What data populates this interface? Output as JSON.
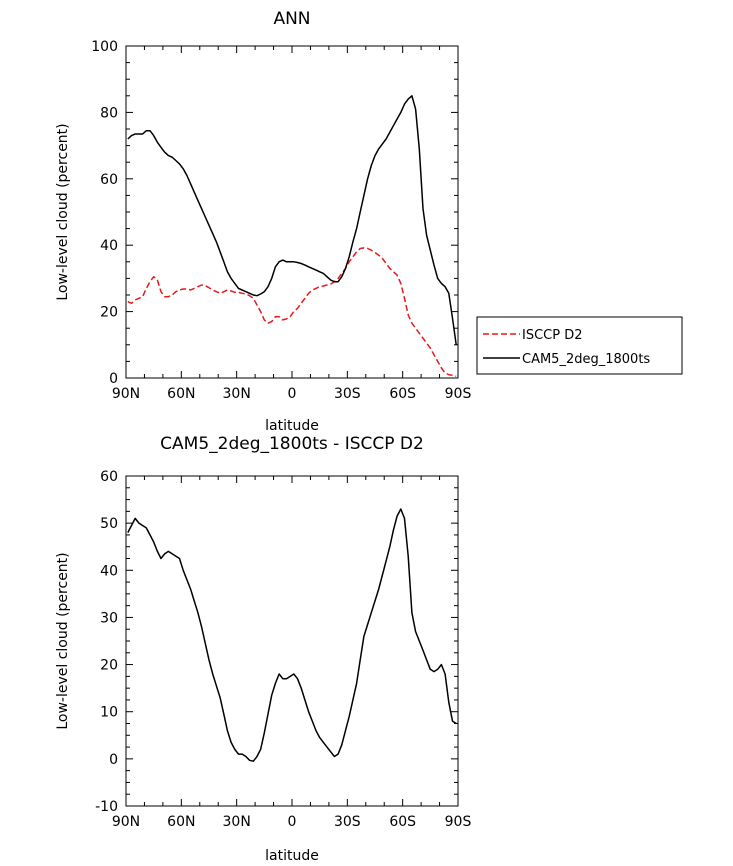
{
  "chart_data": [
    {
      "type": "line",
      "title": "ANN",
      "xlabel": "latitude",
      "ylabel": "Low-level cloud (percent)",
      "xlim": [
        90,
        -90
      ],
      "ylim": [
        0,
        100
      ],
      "xticks": [
        90,
        60,
        30,
        0,
        -30,
        -60,
        -90
      ],
      "xtick_labels": [
        "90N",
        "60N",
        "30N",
        "0",
        "30S",
        "60S",
        "90S"
      ],
      "yticks": [
        0,
        20,
        40,
        60,
        80,
        100
      ],
      "ytick_labels": [
        "0",
        "20",
        "40",
        "60",
        "80",
        "100"
      ],
      "legend_position": "right",
      "series": [
        {
          "name": "ISCCP D2",
          "color": "#e41a1c",
          "dash": "dashed",
          "x": [
            89,
            87,
            85,
            83,
            81,
            79,
            77,
            75,
            73,
            71,
            69,
            67,
            65,
            63,
            61,
            59,
            57,
            55,
            53,
            51,
            49,
            47,
            45,
            43,
            41,
            39,
            37,
            35,
            33,
            31,
            29,
            27,
            25,
            23,
            21,
            19,
            17,
            15,
            13,
            11,
            9,
            7,
            5,
            3,
            1,
            -1,
            -3,
            -5,
            -7,
            -9,
            -11,
            -13,
            -15,
            -17,
            -19,
            -21,
            -23,
            -25,
            -27,
            -29,
            -31,
            -33,
            -35,
            -37,
            -39,
            -41,
            -43,
            -45,
            -47,
            -49,
            -51,
            -53,
            -55,
            -57,
            -59,
            -61,
            -63,
            -65,
            -67,
            -69,
            -71,
            -73,
            -75,
            -77,
            -79,
            -81,
            -83,
            -85,
            -87,
            -89
          ],
          "values": [
            23.0,
            22.5,
            23.5,
            24.0,
            24.5,
            27.0,
            29.0,
            30.5,
            29.5,
            26.0,
            24.5,
            24.5,
            25.0,
            26.0,
            26.5,
            26.8,
            26.8,
            26.5,
            27.0,
            27.5,
            28.0,
            27.8,
            27.2,
            26.5,
            26.0,
            25.5,
            26.0,
            26.5,
            26.2,
            25.8,
            25.8,
            25.5,
            25.3,
            24.8,
            24.0,
            22.0,
            20.0,
            17.5,
            16.5,
            17.0,
            18.5,
            18.5,
            17.5,
            17.8,
            18.5,
            20.0,
            21.0,
            22.5,
            24.0,
            25.5,
            26.5,
            27.0,
            27.5,
            27.7,
            28.0,
            28.3,
            29.0,
            30.0,
            31.5,
            33.0,
            35.0,
            36.5,
            38.0,
            39.0,
            39.2,
            39.0,
            38.5,
            37.8,
            37.0,
            36.0,
            34.5,
            33.0,
            32.0,
            31.0,
            28.5,
            24.0,
            19.0,
            16.5,
            15.0,
            13.5,
            12.0,
            10.5,
            9.0,
            7.0,
            5.0,
            3.0,
            1.5,
            1.0,
            0.8,
            0.5
          ]
        },
        {
          "name": "CAM5_2deg_1800ts",
          "color": "#000000",
          "dash": "solid",
          "x": [
            89,
            87,
            85,
            83,
            81,
            79,
            77,
            75,
            73,
            71,
            69,
            67,
            65,
            63,
            61,
            59,
            57,
            55,
            53,
            51,
            49,
            47,
            45,
            43,
            41,
            39,
            37,
            35,
            33,
            31,
            29,
            27,
            25,
            23,
            21,
            19,
            17,
            15,
            13,
            11,
            9,
            7,
            5,
            3,
            1,
            -1,
            -3,
            -5,
            -7,
            -9,
            -11,
            -13,
            -15,
            -17,
            -19,
            -21,
            -23,
            -25,
            -27,
            -29,
            -31,
            -33,
            -35,
            -37,
            -39,
            -41,
            -43,
            -45,
            -47,
            -49,
            -51,
            -53,
            -55,
            -57,
            -59,
            -61,
            -63,
            -65,
            -67,
            -69,
            -71,
            -73,
            -75,
            -77,
            -79,
            -81,
            -83,
            -85,
            -87,
            -89
          ],
          "values": [
            72.0,
            73.0,
            73.5,
            73.5,
            73.5,
            74.5,
            74.5,
            73.0,
            71.0,
            69.5,
            68.0,
            67.0,
            66.5,
            65.5,
            64.5,
            63.0,
            61.0,
            58.5,
            56.0,
            53.5,
            51.0,
            48.5,
            46.0,
            43.5,
            41.0,
            38.0,
            35.0,
            32.0,
            30.0,
            28.5,
            27.0,
            26.5,
            26.0,
            25.5,
            25.0,
            24.8,
            25.3,
            26.0,
            27.5,
            30.0,
            33.5,
            35.0,
            35.5,
            35.0,
            35.0,
            35.0,
            34.8,
            34.5,
            34.0,
            33.5,
            33.0,
            32.5,
            32.0,
            31.5,
            30.5,
            29.5,
            29.0,
            29.0,
            30.5,
            33.0,
            36.5,
            41.0,
            45.0,
            50.0,
            55.0,
            60.0,
            64.0,
            67.0,
            69.0,
            70.5,
            72.0,
            74.0,
            76.0,
            78.0,
            80.0,
            82.5,
            84.0,
            85.0,
            81.0,
            69.0,
            51.0,
            43.0,
            38.5,
            34.0,
            30.0,
            28.5,
            27.5,
            25.5,
            18.0,
            10.0
          ]
        }
      ]
    },
    {
      "type": "line",
      "title": "CAM5_2deg_1800ts - ISCCP D2",
      "xlabel": "latitude",
      "ylabel": "Low-level cloud (percent)",
      "xlim": [
        90,
        -90
      ],
      "ylim": [
        -10,
        60
      ],
      "xticks": [
        90,
        60,
        30,
        0,
        -30,
        -60,
        -90
      ],
      "xtick_labels": [
        "90N",
        "60N",
        "30N",
        "0",
        "30S",
        "60S",
        "90S"
      ],
      "yticks": [
        -10,
        0,
        10,
        20,
        30,
        40,
        50,
        60
      ],
      "ytick_labels": [
        "-10",
        "0",
        "10",
        "20",
        "30",
        "40",
        "50",
        "60"
      ],
      "series": [
        {
          "color": "#000000",
          "dash": "solid",
          "x": [
            89,
            87,
            85,
            83,
            81,
            79,
            77,
            75,
            73,
            71,
            69,
            67,
            65,
            63,
            61,
            59,
            57,
            55,
            53,
            51,
            49,
            47,
            45,
            43,
            41,
            39,
            37,
            35,
            33,
            31,
            29,
            27,
            25,
            23,
            21,
            19,
            17,
            15,
            13,
            11,
            9,
            7,
            5,
            3,
            1,
            -1,
            -3,
            -5,
            -7,
            -9,
            -11,
            -13,
            -15,
            -17,
            -19,
            -21,
            -23,
            -25,
            -27,
            -29,
            -31,
            -33,
            -35,
            -37,
            -39,
            -41,
            -43,
            -45,
            -47,
            -49,
            -51,
            -53,
            -55,
            -57,
            -59,
            -61,
            -63,
            -65,
            -67,
            -69,
            -71,
            -73,
            -75,
            -77,
            -79,
            -81,
            -83,
            -85,
            -87,
            -89
          ],
          "values": [
            48.0,
            49.5,
            51.0,
            50.0,
            49.5,
            49.0,
            47.5,
            46.0,
            44.0,
            42.5,
            43.5,
            44.0,
            43.5,
            43.0,
            42.5,
            40.0,
            38.0,
            36.0,
            33.5,
            31.0,
            28.0,
            24.5,
            21.0,
            18.0,
            15.5,
            13.0,
            9.5,
            6.0,
            3.5,
            2.0,
            1.0,
            1.0,
            0.5,
            -0.3,
            -0.5,
            0.5,
            2.0,
            5.5,
            9.5,
            13.5,
            16.0,
            18.0,
            17.0,
            17.0,
            17.5,
            18.0,
            17.0,
            15.0,
            12.5,
            10.0,
            8.0,
            6.0,
            4.5,
            3.5,
            2.5,
            1.5,
            0.5,
            1.0,
            3.0,
            6.0,
            9.0,
            12.5,
            16.0,
            21.0,
            26.0,
            28.5,
            31.0,
            33.5,
            36.0,
            39.0,
            42.0,
            45.0,
            48.5,
            51.5,
            53.0,
            51.0,
            43.0,
            31.0,
            27.0,
            25.0,
            23.0,
            21.0,
            19.0,
            18.5,
            19.0,
            20.0,
            18.0,
            12.0,
            8.0,
            7.5
          ]
        }
      ]
    }
  ]
}
